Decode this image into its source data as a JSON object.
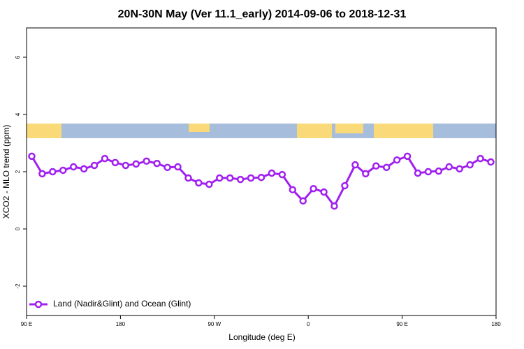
{
  "chart_data": {
    "type": "line",
    "title": "20N-30N May (Ver 11.1_early)   2014-09-06 to 2018-12-31",
    "x_label": "Longitude (deg E)",
    "y_label": "XCO2 - MLO trend (ppm)",
    "x": [
      95,
      105,
      115,
      125,
      135,
      145,
      155,
      165,
      175,
      185,
      195,
      205,
      215,
      225,
      235,
      245,
      255,
      265,
      275,
      285,
      295,
      305,
      315,
      325,
      335,
      345,
      355,
      365,
      375,
      385,
      395,
      405,
      415,
      425,
      435,
      445,
      455,
      465,
      475,
      485,
      495,
      505,
      515,
      525,
      535
    ],
    "series": [
      {
        "name": "Land (Nadir&Glint) and Ocean (Glint)",
        "color": "#a020f0",
        "values": [
          2.54,
          1.93,
          2.0,
          2.05,
          2.17,
          2.1,
          2.22,
          2.46,
          2.32,
          2.22,
          2.27,
          2.37,
          2.29,
          2.15,
          2.17,
          1.78,
          1.61,
          1.56,
          1.78,
          1.78,
          1.73,
          1.78,
          1.8,
          1.95,
          1.9,
          1.37,
          0.98,
          1.41,
          1.29,
          0.8,
          1.51,
          2.24,
          1.93,
          2.2,
          2.15,
          2.41,
          2.54,
          1.95,
          2.0,
          2.02,
          2.17,
          2.1,
          2.24,
          2.46,
          2.34
        ]
      }
    ],
    "xlim": [
      90,
      540
    ],
    "xticks": [
      {
        "value": 90,
        "label": "90 E"
      },
      180,
      {
        "value": 270,
        "label": "90 W"
      },
      {
        "value": 360,
        "label": "0"
      },
      {
        "value": 450,
        "label": "90 E"
      },
      {
        "value": 540,
        "label": "180"
      }
    ],
    "ylim": [
      -3,
      7
    ],
    "yticks": [
      -2,
      0,
      2,
      4,
      6
    ],
    "legend": "bottom-left"
  }
}
